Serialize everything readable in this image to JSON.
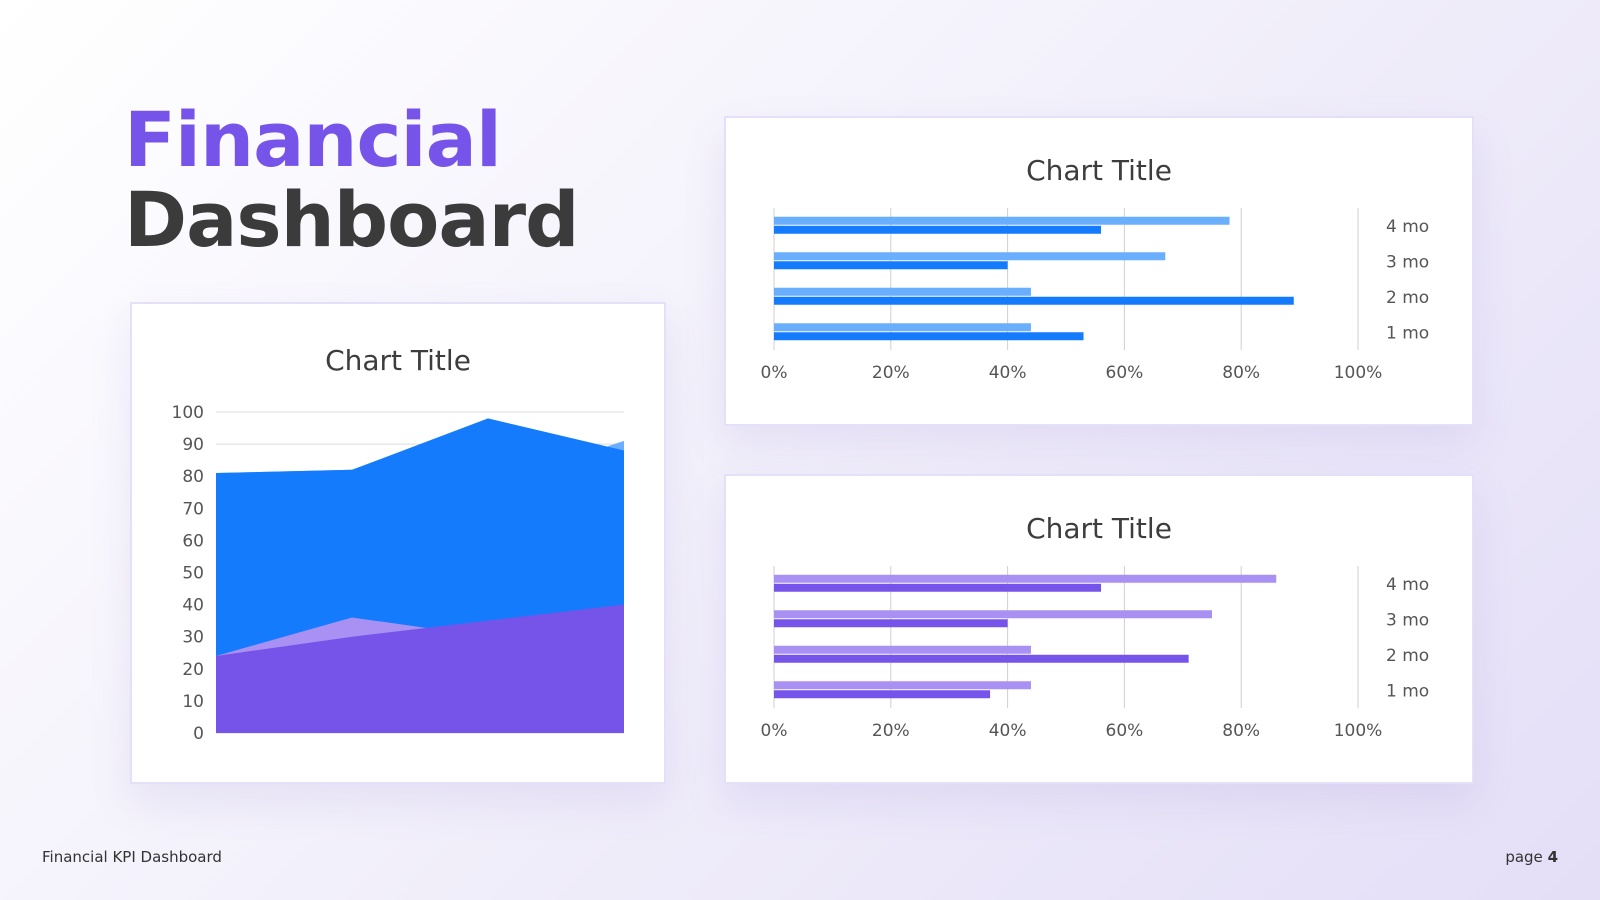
{
  "page": {
    "title_line1": "Financial",
    "title_line2": "Dashboard",
    "footer_left": "Financial KPI Dashboard",
    "footer_page_label": "page",
    "footer_page_number": "4",
    "accent_color": "#7654ea"
  },
  "chart_data": [
    {
      "type": "area",
      "title": "Chart Title",
      "xlabel": "",
      "ylabel": "",
      "ylim": [
        0,
        100
      ],
      "yticks": [
        "0",
        "10",
        "20",
        "30",
        "40",
        "50",
        "60",
        "70",
        "80",
        "90",
        "100"
      ],
      "grid": true,
      "x": [
        0,
        1,
        2,
        3
      ],
      "series": [
        {
          "values": [
            81,
            82,
            77,
            91
          ],
          "color": "#6aaefe"
        },
        {
          "values": [
            81,
            82,
            98,
            88
          ],
          "color": "#137bfc"
        },
        {
          "values": [
            24,
            36,
            30,
            40
          ],
          "color": "#a891f2"
        },
        {
          "values": [
            24,
            30,
            35,
            40
          ],
          "color": "#7654ea"
        }
      ]
    },
    {
      "type": "bar",
      "orientation": "horizontal",
      "title": "Chart Title",
      "categories": [
        "4 mo",
        "3 mo",
        "2 mo",
        "1 mo"
      ],
      "xticks": [
        "0%",
        "20%",
        "40%",
        "60%",
        "80%",
        "100%"
      ],
      "xlim": [
        0,
        100
      ],
      "grid": true,
      "series": [
        {
          "values": [
            78,
            67,
            44,
            44
          ],
          "color": "#6aaefe"
        },
        {
          "values": [
            56,
            40,
            89,
            53
          ],
          "color": "#137bfc"
        }
      ]
    },
    {
      "type": "bar",
      "orientation": "horizontal",
      "title": "Chart Title",
      "categories": [
        "4 mo",
        "3 mo",
        "2 mo",
        "1 mo"
      ],
      "xticks": [
        "0%",
        "20%",
        "40%",
        "60%",
        "80%",
        "100%"
      ],
      "xlim": [
        0,
        100
      ],
      "grid": true,
      "series": [
        {
          "values": [
            86,
            75,
            44,
            44
          ],
          "color": "#a891f2"
        },
        {
          "values": [
            56,
            40,
            71,
            37
          ],
          "color": "#7654ea"
        }
      ]
    }
  ]
}
